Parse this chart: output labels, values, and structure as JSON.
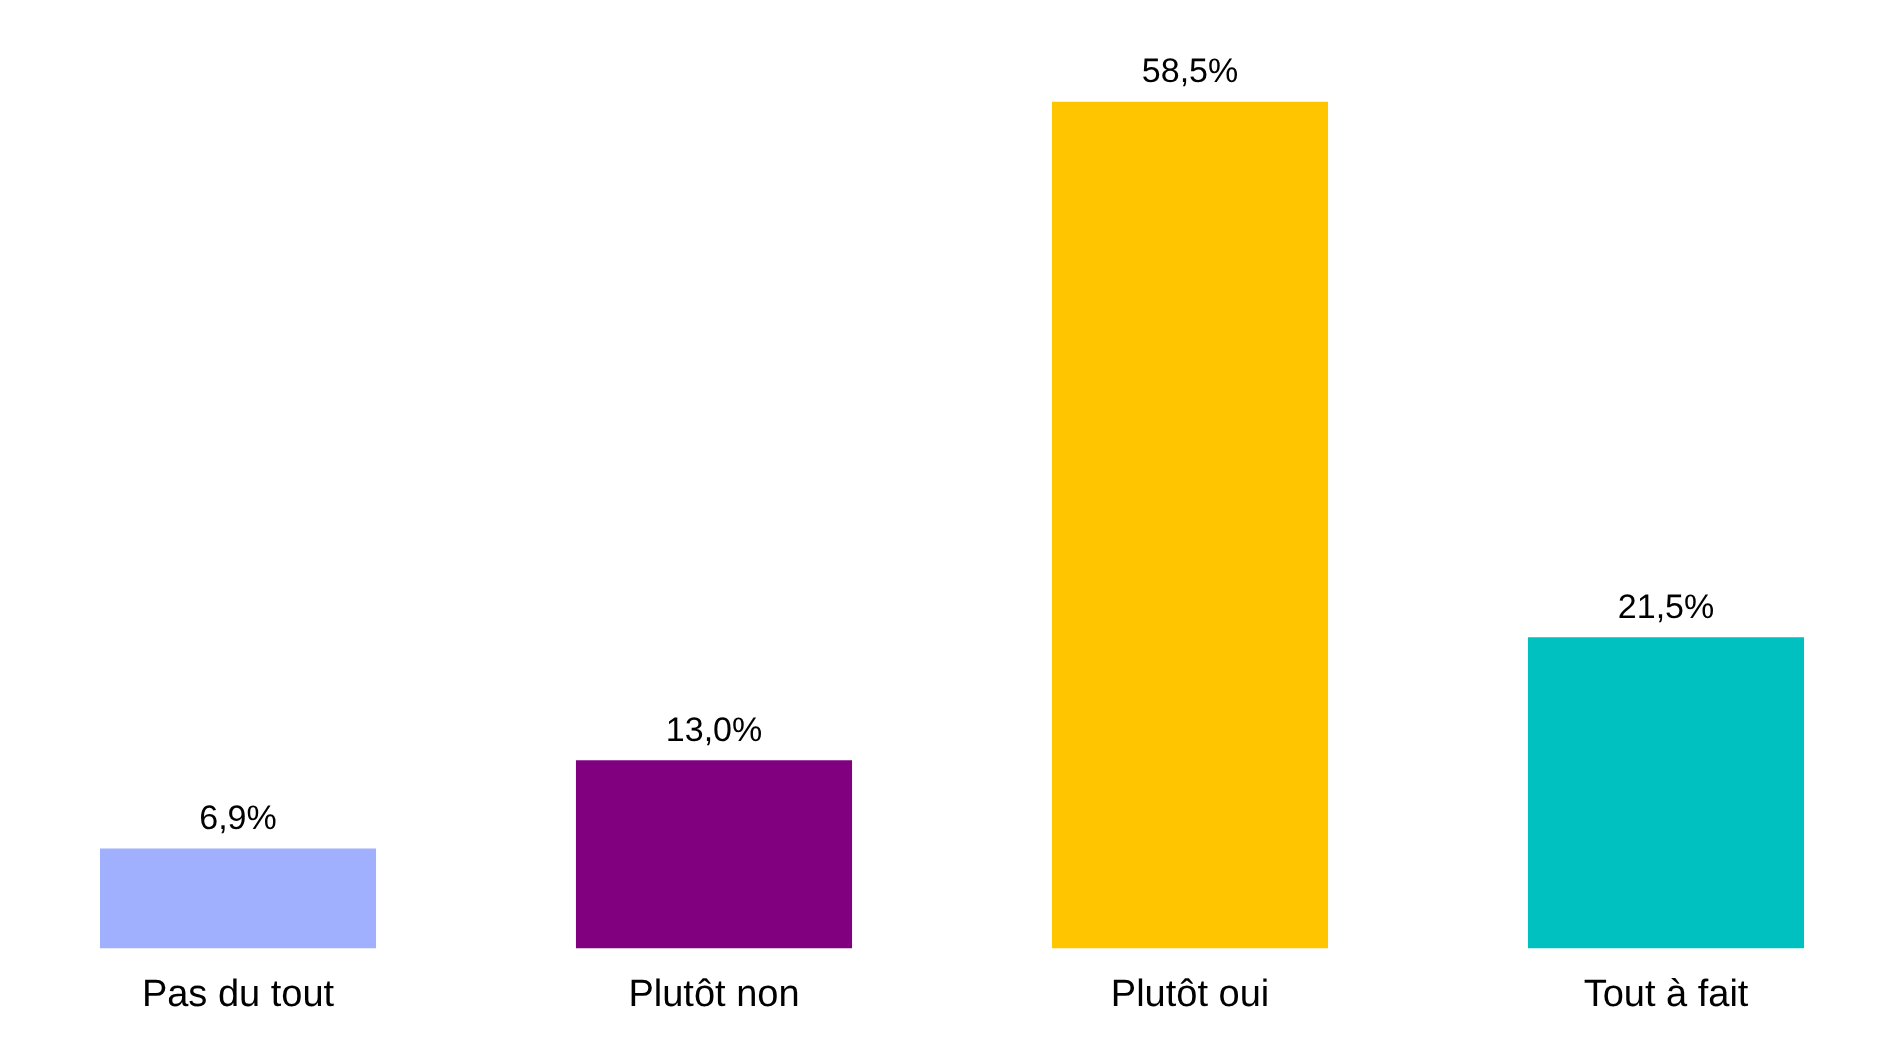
{
  "chart_data": {
    "type": "bar",
    "categories": [
      "Pas du tout",
      "Plutôt non",
      "Plutôt oui",
      "Tout à fait"
    ],
    "values": [
      6.9,
      13.0,
      58.5,
      21.5
    ],
    "colors": [
      "#a0b0ff",
      "#800080",
      "#ffc600",
      "#00c0c0"
    ],
    "value_labels": [
      "6,9%",
      "13,0%",
      "58,5%",
      "21,5%"
    ]
  }
}
